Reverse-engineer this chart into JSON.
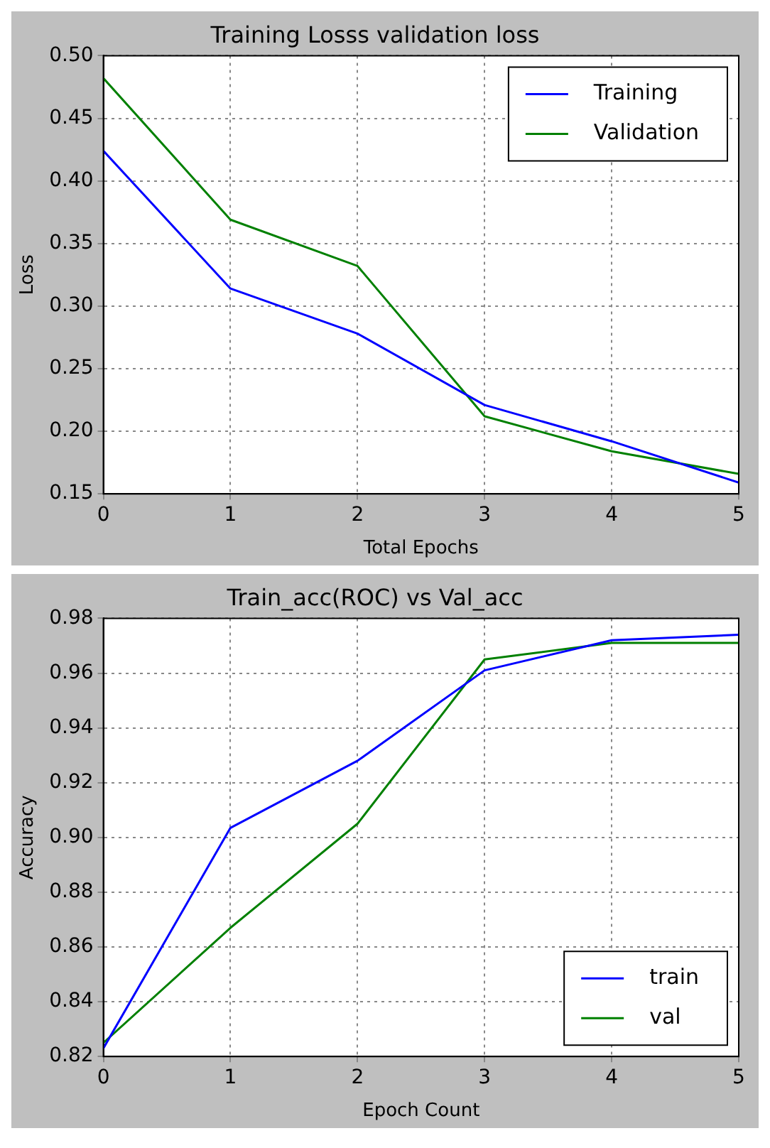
{
  "chart_data": [
    {
      "type": "line",
      "title": "Training Losss validation loss",
      "xlabel": "Total Epochs",
      "ylabel": "Loss",
      "x": [
        0,
        1,
        2,
        3,
        4,
        5
      ],
      "xlim": [
        0,
        5
      ],
      "xticks": [
        0,
        1,
        2,
        3,
        4,
        5
      ],
      "ylim": [
        0.15,
        0.5
      ],
      "yticks": [
        0.15,
        {
          "value": 0.2,
          "label": "0.20"
        },
        0.25,
        {
          "value": 0.3,
          "label": "0.30"
        },
        0.35,
        {
          "value": 0.4,
          "label": "0.40"
        },
        0.45,
        {
          "value": 0.5,
          "label": "0.50"
        }
      ],
      "grid": true,
      "legend": "top right",
      "series": [
        {
          "name": "Training",
          "color": "#0000ff",
          "values": [
            0.424,
            0.314,
            0.278,
            0.221,
            0.192,
            0.159
          ]
        },
        {
          "name": "Validation",
          "color": "#008000",
          "values": [
            0.482,
            0.369,
            0.332,
            0.212,
            0.184,
            0.166
          ]
        }
      ]
    },
    {
      "type": "line",
      "title": "Train_acc(ROC) vs Val_acc",
      "xlabel": "Epoch Count",
      "ylabel": "Accuracy",
      "x": [
        0,
        1,
        2,
        3,
        4,
        5
      ],
      "xlim": [
        0,
        5
      ],
      "xticks": [
        0,
        1,
        2,
        3,
        4,
        5
      ],
      "ylim": [
        0.82,
        0.98
      ],
      "yticks": [
        0.82,
        0.84,
        0.86,
        0.88,
        {
          "value": 0.9,
          "label": "0.90"
        },
        0.92,
        0.94,
        0.96,
        0.98
      ],
      "grid": true,
      "legend": "bottom right",
      "series": [
        {
          "name": "train",
          "color": "#0000ff",
          "values": [
            0.823,
            0.9035,
            0.928,
            0.961,
            0.972,
            0.974
          ]
        },
        {
          "name": "val",
          "color": "#008000",
          "values": [
            0.825,
            0.867,
            0.905,
            0.965,
            0.971,
            0.971
          ]
        }
      ]
    }
  ]
}
